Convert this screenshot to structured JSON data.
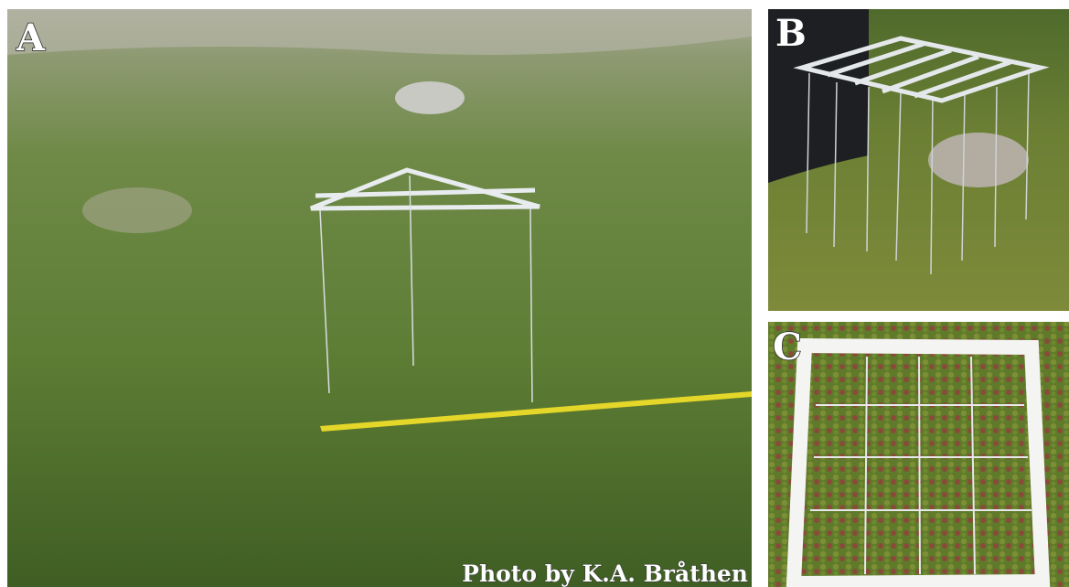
{
  "panels": [
    {
      "label": "A"
    },
    {
      "label": "B"
    },
    {
      "label": "C"
    }
  ],
  "credit": "Photo by K.A. Bråthen"
}
